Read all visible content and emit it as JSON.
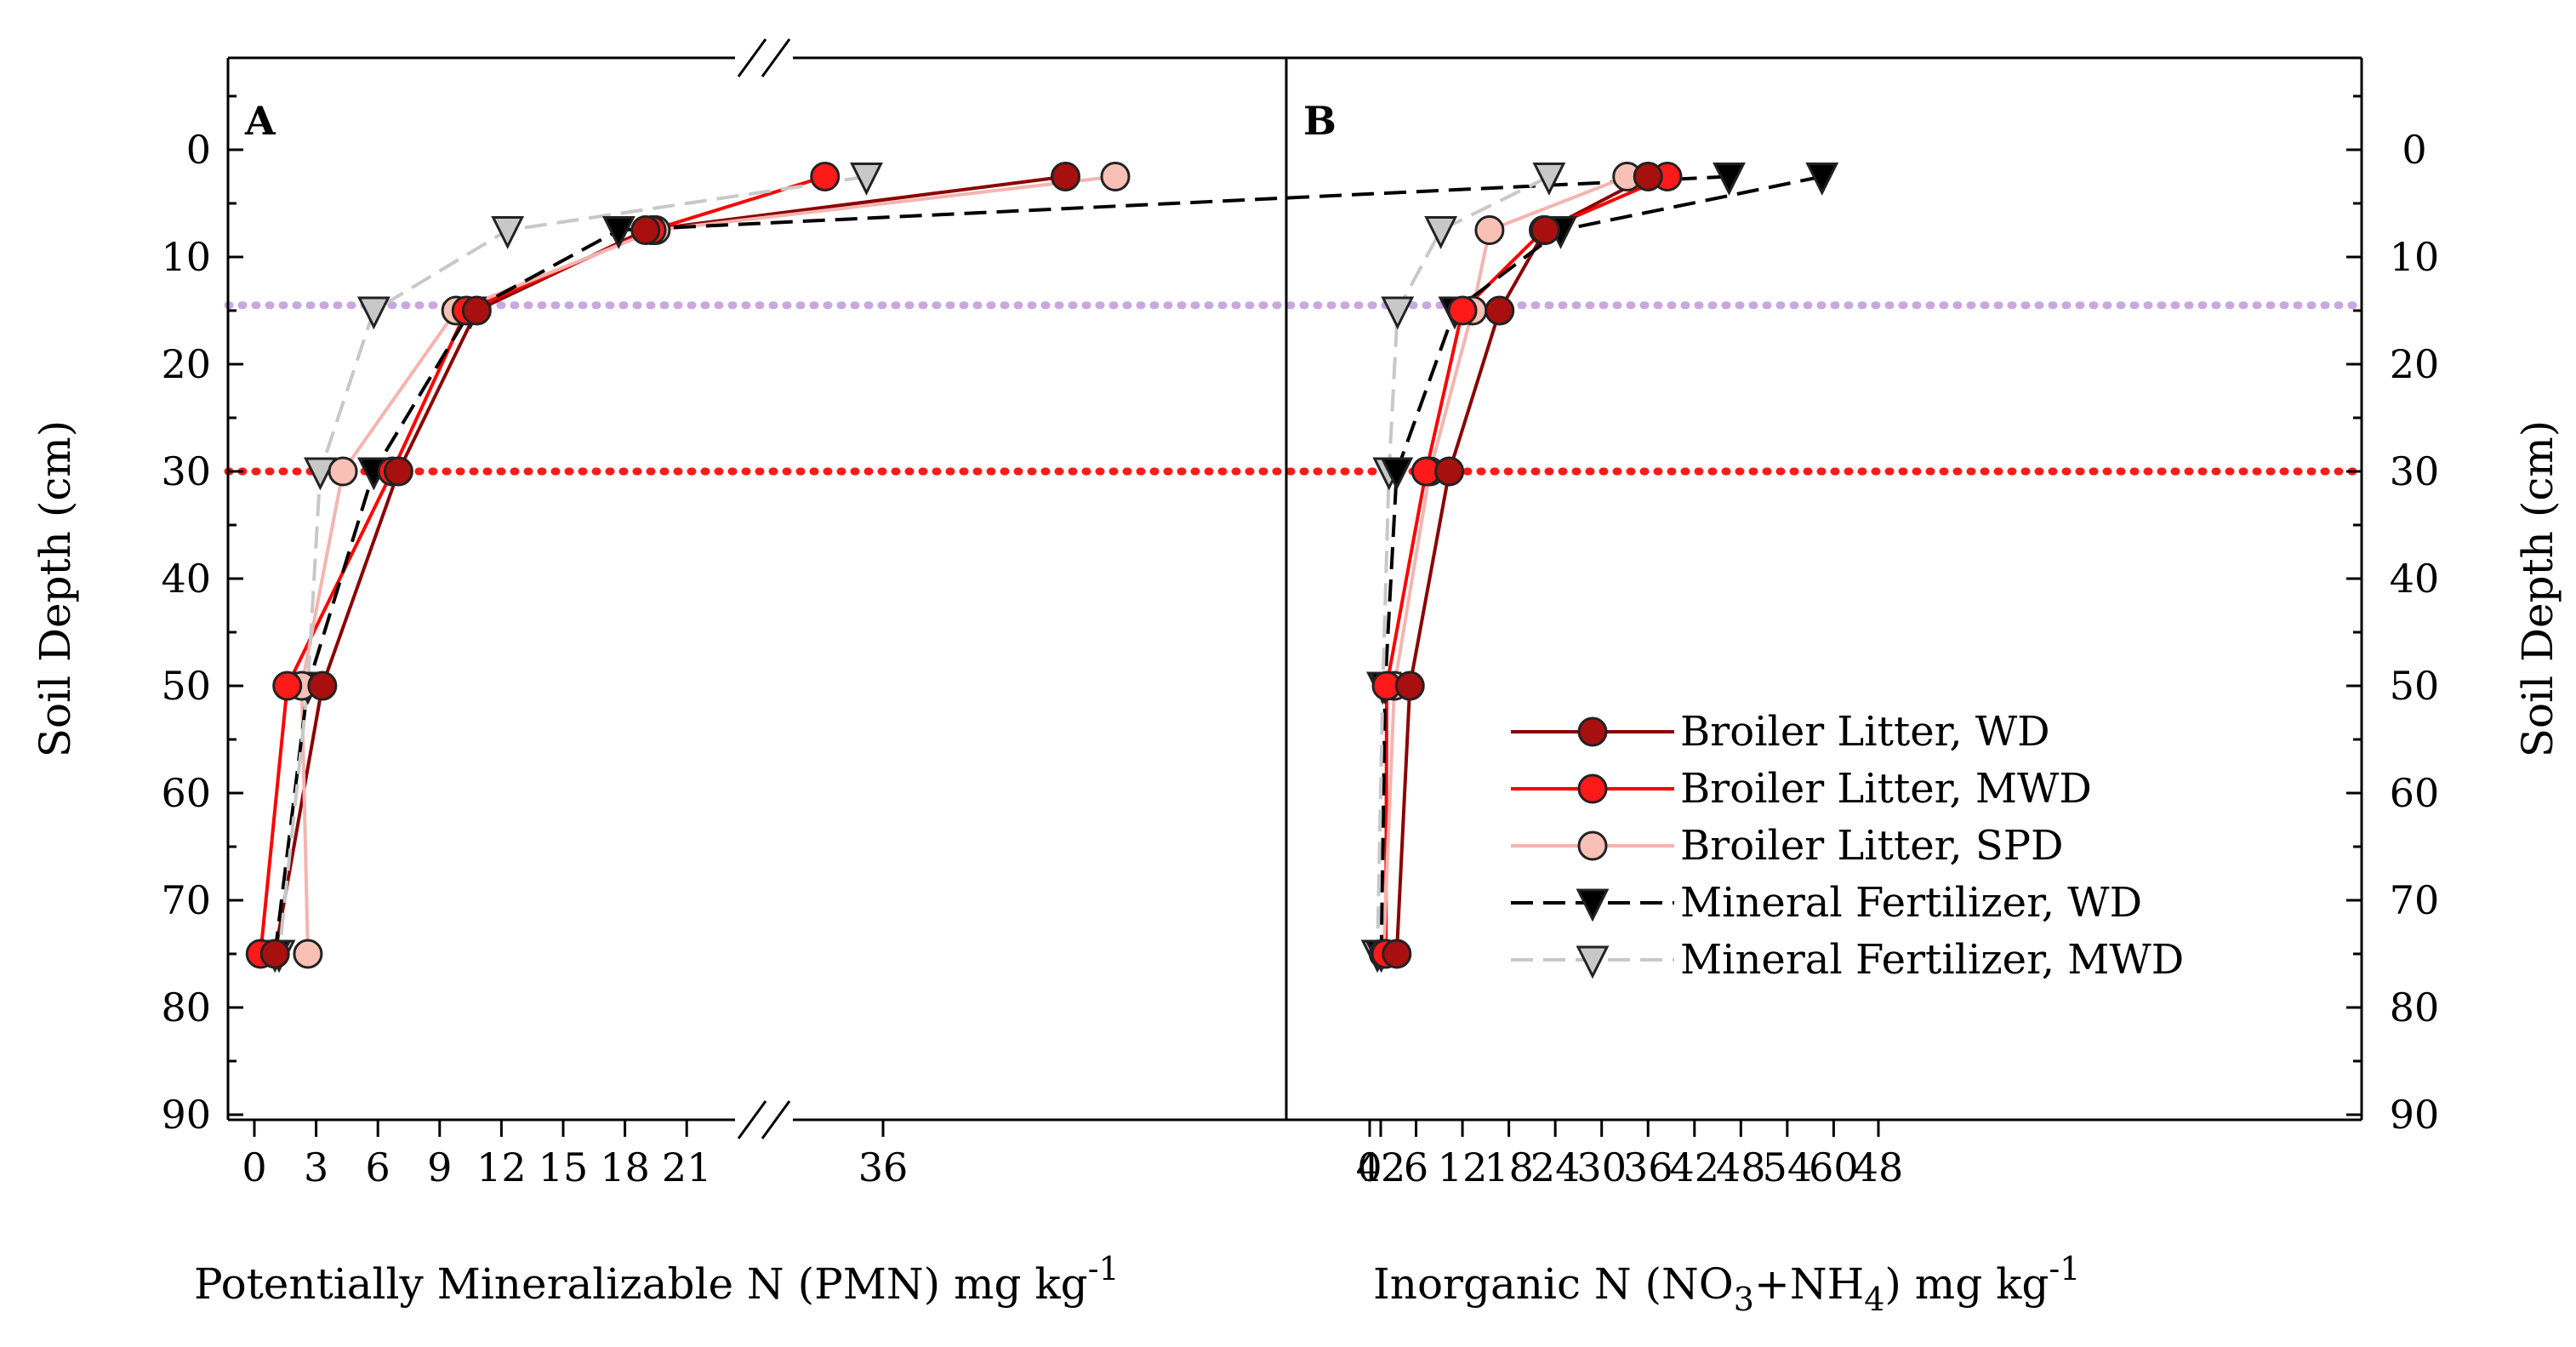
{
  "chart_data": [
    {
      "panel": "A",
      "type": "line",
      "xlabel": "Potentially Mineralizable N (PMN) mg kg",
      "xlabel_sup": "-1",
      "ylabel": "Soil Depth (cm)",
      "x_axis_break": [
        22,
        30
      ],
      "x_ticks_left": [
        0,
        3,
        6,
        9,
        12,
        15,
        18,
        21
      ],
      "x_ticks_right": [
        36,
        42,
        48
      ],
      "xlim": [
        -1,
        48
      ],
      "y_ticks": [
        0,
        10,
        20,
        30,
        40,
        50,
        60,
        70,
        80,
        90
      ],
      "ylim": [
        -9,
        90
      ],
      "reference_lines": [
        {
          "depth": 14.5,
          "color": "#c9a8e0"
        },
        {
          "depth": 30,
          "color": "#ff1a1a"
        }
      ],
      "series": [
        {
          "name": "Broiler Litter, WD",
          "depth": [
            2.5,
            7.5,
            15,
            30,
            50,
            75
          ],
          "values": [
            38.2,
            19.0,
            10.8,
            7.0,
            3.3,
            1.0
          ]
        },
        {
          "name": "Broiler Litter, MWD",
          "depth": [
            2.5,
            7.5,
            15,
            30,
            50,
            75
          ],
          "values": [
            35.3,
            19.3,
            10.3,
            6.7,
            1.6,
            0.3
          ]
        },
        {
          "name": "Broiler Litter, SPD",
          "depth": [
            2.5,
            7.5,
            15,
            30,
            50,
            75
          ],
          "values": [
            38.8,
            19.5,
            9.8,
            4.3,
            2.3,
            2.6
          ]
        },
        {
          "name": "Mineral Fertilizer, WD",
          "depth": [
            2.5,
            7.5,
            15,
            30,
            50,
            75
          ],
          "values": [
            46.2,
            17.7,
            10.5,
            5.8,
            2.6,
            1.0
          ]
        },
        {
          "name": "Mineral Fertilizer, MWD",
          "depth": [
            2.5,
            7.5,
            15,
            30,
            50,
            75
          ],
          "values": [
            35.8,
            12.3,
            5.8,
            3.2,
            2.6,
            1.2
          ]
        }
      ]
    },
    {
      "panel": "B",
      "type": "line",
      "xlabel": "Inorganic N (NO",
      "xlabel_parts": [
        "3",
        "+NH",
        "4",
        ") mg kg",
        "-1"
      ],
      "ylabel": "Soil Depth (cm)",
      "x_ticks": [
        0,
        6,
        12,
        18,
        24,
        30,
        36,
        42,
        48,
        54,
        60
      ],
      "xlim": [
        -6,
        63
      ],
      "y_ticks": [
        0,
        10,
        20,
        30,
        40,
        50,
        60,
        70,
        80,
        90
      ],
      "ylim": [
        -9,
        90
      ],
      "series": [
        {
          "name": "Broiler Litter, WD",
          "depth": [
            2.5,
            7.5,
            15,
            30,
            50,
            75
          ],
          "values": [
            36.0,
            22.7,
            16.8,
            10.3,
            5.2,
            3.5
          ]
        },
        {
          "name": "Broiler Litter, MWD",
          "depth": [
            2.5,
            7.5,
            15,
            30,
            50,
            75
          ],
          "values": [
            38.5,
            22.5,
            12.0,
            7.3,
            2.2,
            2.1
          ]
        },
        {
          "name": "Broiler Litter, SPD",
          "depth": [
            2.5,
            7.5,
            15,
            30,
            50,
            75
          ],
          "values": [
            33.3,
            15.5,
            13.3,
            7.8,
            3.2,
            1.8
          ]
        },
        {
          "name": "Mineral Fertilizer, WD",
          "depth": [
            2.5,
            7.5,
            15,
            30,
            50,
            75
          ],
          "values": [
            58.5,
            24.7,
            11.0,
            3.5,
            2.0,
            1.5
          ]
        },
        {
          "name": "Mineral Fertilizer, MWD",
          "depth": [
            2.5,
            7.5,
            15,
            30,
            50,
            75
          ],
          "values": [
            23.2,
            9.2,
            3.6,
            2.5,
            1.7,
            1.0
          ]
        }
      ]
    }
  ],
  "legend": {
    "placement": "bottom-right of panel B",
    "items": [
      {
        "label": "Broiler Litter, WD",
        "marker": "circle",
        "fill": "#a80f0f",
        "line": "#8b0000",
        "dash": "solid"
      },
      {
        "label": "Broiler Litter, MWD",
        "marker": "circle",
        "fill": "#ff1a1a",
        "line": "#ff0000",
        "dash": "solid"
      },
      {
        "label": "Broiler Litter, SPD",
        "marker": "circle",
        "fill": "#f9c0b5",
        "line": "#f4b4b0",
        "dash": "solid"
      },
      {
        "label": "Mineral Fertilizer, WD",
        "marker": "triangle-down",
        "fill": "#000000",
        "line": "#000000",
        "dash": "dashed"
      },
      {
        "label": "Mineral Fertilizer, MWD",
        "marker": "triangle-down",
        "fill": "#c8c8c8",
        "line": "#c8c8c8",
        "dash": "dashed"
      }
    ]
  }
}
